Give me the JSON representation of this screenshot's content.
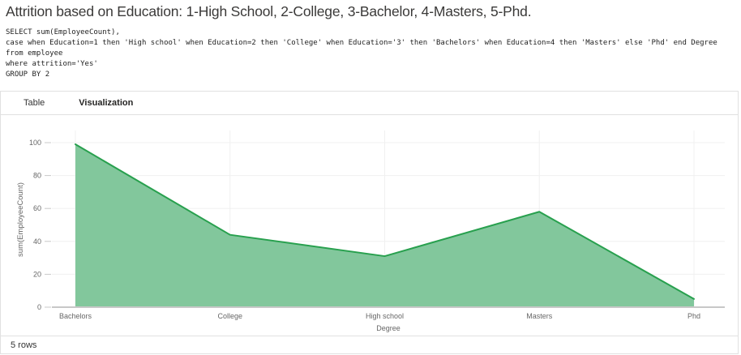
{
  "page": {
    "title": "Attrition based on Education: 1-High School, 2-College, 3-Bachelor, 4-Masters, 5-Phd."
  },
  "sql": {
    "code": "SELECT sum(EmployeeCount),\ncase when Education=1 then 'High school' when Education=2 then 'College' when Education='3' then 'Bachelors' when Education=4 then 'Masters' else 'Phd' end Degree\nfrom employee\nwhere attrition='Yes'\nGROUP BY 2"
  },
  "results": {
    "tabs": [
      {
        "label": "Table",
        "active": false
      },
      {
        "label": "Visualization",
        "active": true
      }
    ],
    "footer": {
      "row_count": "5 rows"
    }
  },
  "chart_data": {
    "type": "area",
    "categories": [
      "Bachelors",
      "College",
      "High school",
      "Masters",
      "Phd"
    ],
    "values": [
      99,
      44,
      31,
      58,
      5
    ],
    "title": "",
    "xlabel": "Degree",
    "ylabel": "sum(EmployeeCount)",
    "ylim": [
      0,
      100
    ],
    "yticks": [
      0,
      20,
      40,
      60,
      80,
      100
    ],
    "grid": true,
    "legend": "none",
    "colors": {
      "area_fill": "#82c79c",
      "line": "#28a04e",
      "axis": "#c8c8c8",
      "grid": "#f0f0f0",
      "tick_label": "#666666"
    }
  }
}
